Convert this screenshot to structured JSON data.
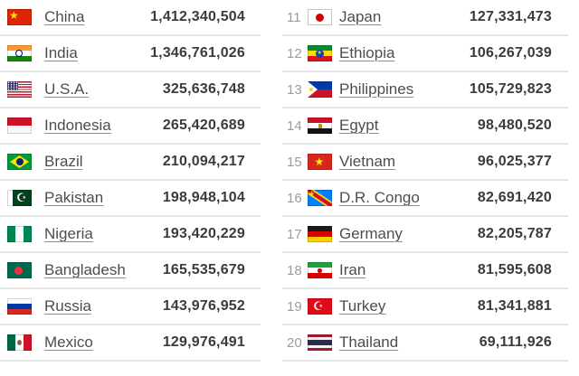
{
  "colors": {
    "link_text": "#4d4d4d",
    "population_text": "#3b3b3b",
    "rank_text": "#9c9c9c",
    "divider": "#e4e4e4",
    "background": "#ffffff"
  },
  "left_column": {
    "rows": [
      {
        "flag": "china",
        "country": "China",
        "population": "1,412,340,504"
      },
      {
        "flag": "india",
        "country": "India",
        "population": "1,346,761,026"
      },
      {
        "flag": "usa",
        "country": "U.S.A.",
        "population": "325,636,748"
      },
      {
        "flag": "indonesia",
        "country": "Indonesia",
        "population": "265,420,689"
      },
      {
        "flag": "brazil",
        "country": "Brazil",
        "population": "210,094,217"
      },
      {
        "flag": "pakistan",
        "country": "Pakistan",
        "population": "198,948,104"
      },
      {
        "flag": "nigeria",
        "country": "Nigeria",
        "population": "193,420,229"
      },
      {
        "flag": "bangladesh",
        "country": "Bangladesh",
        "population": "165,535,679"
      },
      {
        "flag": "russia",
        "country": "Russia",
        "population": "143,976,952"
      },
      {
        "flag": "mexico",
        "country": "Mexico",
        "population": "129,976,491"
      }
    ]
  },
  "right_column": {
    "rows": [
      {
        "rank": "11",
        "flag": "japan",
        "country": "Japan",
        "population": "127,331,473"
      },
      {
        "rank": "12",
        "flag": "ethiopia",
        "country": "Ethiopia",
        "population": "106,267,039"
      },
      {
        "rank": "13",
        "flag": "philippines",
        "country": "Philippines",
        "population": "105,729,823"
      },
      {
        "rank": "14",
        "flag": "egypt",
        "country": "Egypt",
        "population": "98,480,520"
      },
      {
        "rank": "15",
        "flag": "vietnam",
        "country": "Vietnam",
        "population": "96,025,377"
      },
      {
        "rank": "16",
        "flag": "drcongo",
        "country": "D.R. Congo",
        "population": "82,691,420"
      },
      {
        "rank": "17",
        "flag": "germany",
        "country": "Germany",
        "population": "82,205,787"
      },
      {
        "rank": "18",
        "flag": "iran",
        "country": "Iran",
        "population": "81,595,608"
      },
      {
        "rank": "19",
        "flag": "turkey",
        "country": "Turkey",
        "population": "81,341,881"
      },
      {
        "rank": "20",
        "flag": "thailand",
        "country": "Thailand",
        "population": "69,111,926"
      }
    ]
  }
}
